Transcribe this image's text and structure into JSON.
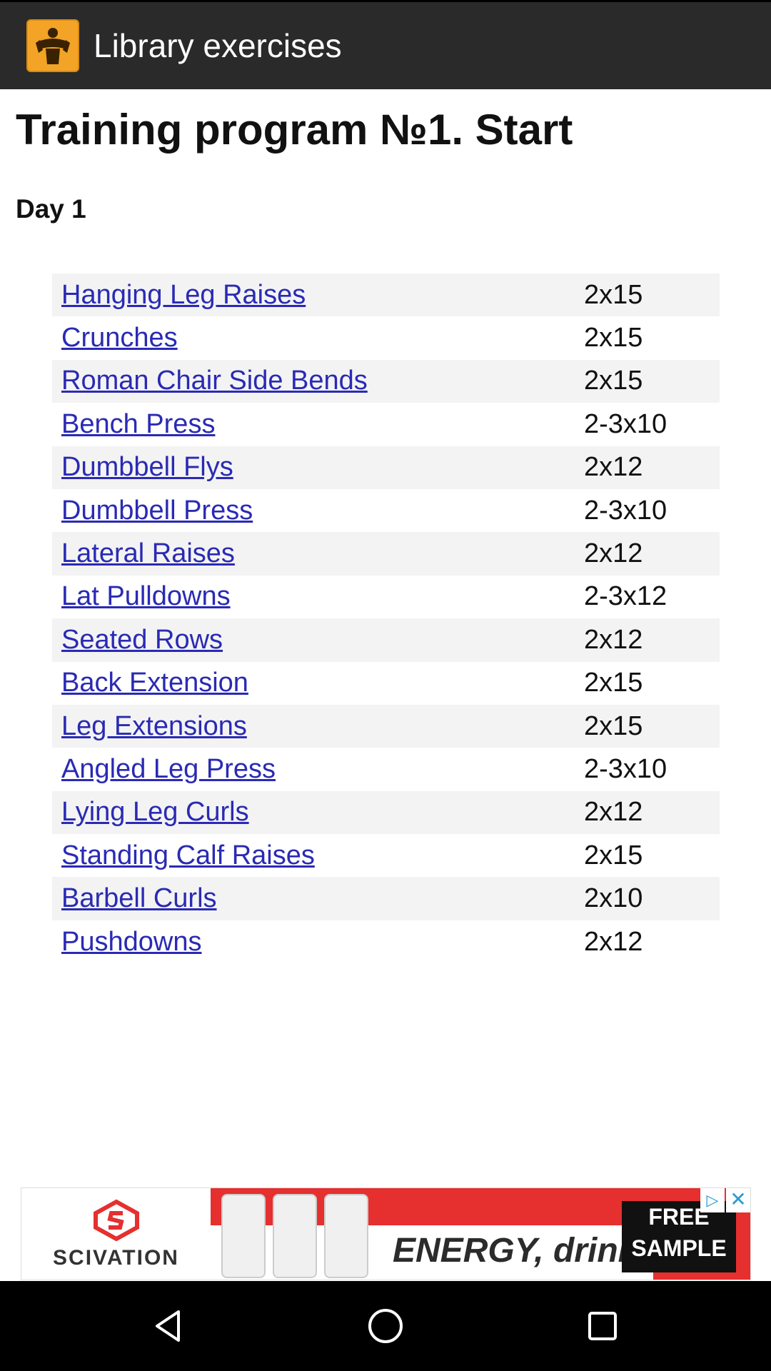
{
  "app_bar": {
    "title": "Library exercises",
    "icon": "muscleman-logo-icon"
  },
  "page": {
    "title": "Training program №1. Start",
    "day": "Day 1"
  },
  "exercises": [
    {
      "name": "Hanging Leg Raises",
      "sets": "2x15"
    },
    {
      "name": "Crunches",
      "sets": "2x15"
    },
    {
      "name": "Roman Chair Side Bends",
      "sets": "2x15"
    },
    {
      "name": "Bench Press",
      "sets": "2-3x10"
    },
    {
      "name": "Dumbbell Flys",
      "sets": "2x12"
    },
    {
      "name": "Dumbbell Press",
      "sets": "2-3x10"
    },
    {
      "name": "Lateral Raises",
      "sets": "2x12"
    },
    {
      "name": "Lat Pulldowns",
      "sets": "2-3x12"
    },
    {
      "name": "Seated Rows",
      "sets": "2x12"
    },
    {
      "name": "Back Extension",
      "sets": "2x15"
    },
    {
      "name": "Leg Extensions",
      "sets": "2x15"
    },
    {
      "name": "Angled Leg Press",
      "sets": "2-3x10"
    },
    {
      "name": "Lying Leg Curls",
      "sets": "2x12"
    },
    {
      "name": "Standing Calf Raises",
      "sets": "2x15"
    },
    {
      "name": "Barbell Curls",
      "sets": "2x10"
    },
    {
      "name": "Pushdowns",
      "sets": "2x12"
    }
  ],
  "ad": {
    "brand": "SCIVATION",
    "tagline": "ENERGY, drink.",
    "cta": "FREE SAMPLE",
    "close_icon": "close-icon",
    "adchoices_icon": "adchoices-icon"
  },
  "nav": {
    "back_icon": "back-icon",
    "home_icon": "home-icon",
    "recents_icon": "recents-icon"
  },
  "colors": {
    "app_bar": "#2a2a2a",
    "app_icon": "#f3a325",
    "link": "#2a2ab4",
    "row_alt": "#f3f3f3"
  }
}
